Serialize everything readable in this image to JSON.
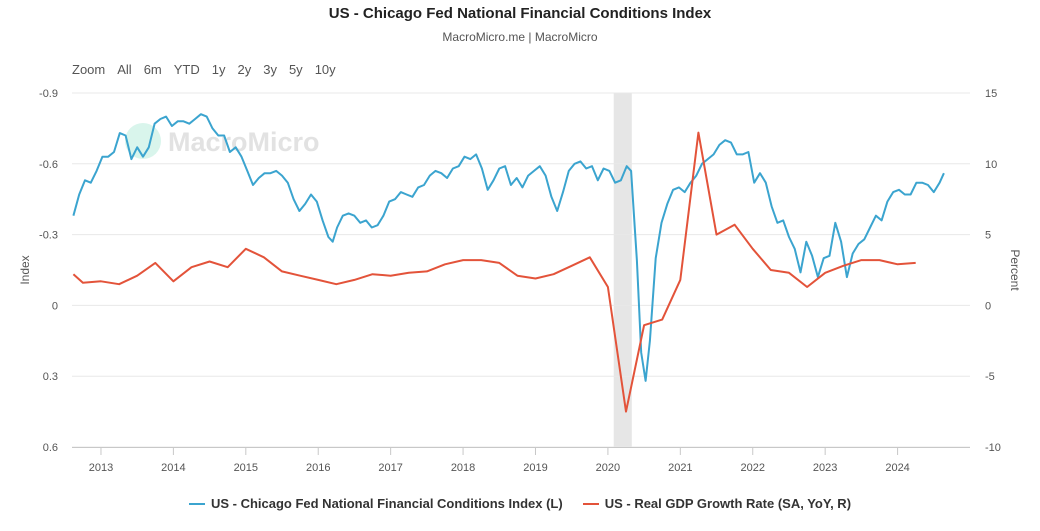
{
  "header": {
    "title": "US - Chicago Fed National Financial Conditions Index",
    "subtitle": "MacroMicro.me | MacroMicro"
  },
  "zoom": {
    "label": "Zoom",
    "buttons": [
      "All",
      "6m",
      "YTD",
      "1y",
      "2y",
      "3y",
      "5y",
      "10y"
    ]
  },
  "watermark": "MacroMicro",
  "colors": {
    "nfci": "#3ba4cf",
    "gdp": "#e3533a",
    "recession": "#e6e6e6",
    "grid": "#e8e8e8"
  },
  "chart_data": {
    "type": "line",
    "title": "US - Chicago Fed National Financial Conditions Index",
    "subtitle": "MacroMicro.me | MacroMicro",
    "x_ticks": [
      "2013",
      "2014",
      "2015",
      "2016",
      "2017",
      "2018",
      "2019",
      "2020",
      "2021",
      "2022",
      "2023",
      "2024"
    ],
    "xlim": [
      2012.6,
      2025.0
    ],
    "y_left": {
      "label": "Index",
      "reversed": true,
      "ylim": [
        -0.9,
        0.6
      ],
      "ticks": [
        "-0.9",
        "-0.6",
        "-0.3",
        "0",
        "0.3",
        "0.6"
      ]
    },
    "y_right": {
      "label": "Percent",
      "ylim": [
        -10,
        15
      ],
      "ticks": [
        "15",
        "10",
        "5",
        "0",
        "-5",
        "-10"
      ]
    },
    "recession_band": [
      2020.08,
      2020.33
    ],
    "grid": true,
    "legend_position": "bottom-center",
    "series": [
      {
        "name": "US - Chicago Fed National Financial Conditions Index (L)",
        "axis": "left",
        "points": [
          [
            2012.62,
            -0.38
          ],
          [
            2012.7,
            -0.47
          ],
          [
            2012.78,
            -0.53
          ],
          [
            2012.86,
            -0.52
          ],
          [
            2012.94,
            -0.57
          ],
          [
            2013.02,
            -0.63
          ],
          [
            2013.1,
            -0.63
          ],
          [
            2013.18,
            -0.65
          ],
          [
            2013.26,
            -0.73
          ],
          [
            2013.34,
            -0.72
          ],
          [
            2013.42,
            -0.62
          ],
          [
            2013.5,
            -0.67
          ],
          [
            2013.58,
            -0.63
          ],
          [
            2013.66,
            -0.67
          ],
          [
            2013.74,
            -0.77
          ],
          [
            2013.82,
            -0.79
          ],
          [
            2013.9,
            -0.8
          ],
          [
            2013.98,
            -0.76
          ],
          [
            2014.06,
            -0.78
          ],
          [
            2014.14,
            -0.78
          ],
          [
            2014.22,
            -0.77
          ],
          [
            2014.3,
            -0.79
          ],
          [
            2014.38,
            -0.81
          ],
          [
            2014.46,
            -0.8
          ],
          [
            2014.54,
            -0.75
          ],
          [
            2014.62,
            -0.72
          ],
          [
            2014.7,
            -0.72
          ],
          [
            2014.78,
            -0.65
          ],
          [
            2014.86,
            -0.67
          ],
          [
            2014.94,
            -0.63
          ],
          [
            2015.02,
            -0.57
          ],
          [
            2015.1,
            -0.51
          ],
          [
            2015.18,
            -0.54
          ],
          [
            2015.26,
            -0.56
          ],
          [
            2015.34,
            -0.56
          ],
          [
            2015.42,
            -0.57
          ],
          [
            2015.5,
            -0.55
          ],
          [
            2015.58,
            -0.52
          ],
          [
            2015.66,
            -0.45
          ],
          [
            2015.74,
            -0.4
          ],
          [
            2015.82,
            -0.43
          ],
          [
            2015.9,
            -0.47
          ],
          [
            2015.98,
            -0.44
          ],
          [
            2016.06,
            -0.36
          ],
          [
            2016.14,
            -0.29
          ],
          [
            2016.2,
            -0.27
          ],
          [
            2016.26,
            -0.33
          ],
          [
            2016.34,
            -0.38
          ],
          [
            2016.42,
            -0.39
          ],
          [
            2016.5,
            -0.38
          ],
          [
            2016.58,
            -0.35
          ],
          [
            2016.66,
            -0.36
          ],
          [
            2016.74,
            -0.33
          ],
          [
            2016.82,
            -0.34
          ],
          [
            2016.9,
            -0.38
          ],
          [
            2016.98,
            -0.44
          ],
          [
            2017.06,
            -0.45
          ],
          [
            2017.14,
            -0.48
          ],
          [
            2017.22,
            -0.47
          ],
          [
            2017.3,
            -0.46
          ],
          [
            2017.38,
            -0.5
          ],
          [
            2017.46,
            -0.51
          ],
          [
            2017.54,
            -0.55
          ],
          [
            2017.62,
            -0.57
          ],
          [
            2017.7,
            -0.56
          ],
          [
            2017.78,
            -0.54
          ],
          [
            2017.86,
            -0.58
          ],
          [
            2017.94,
            -0.59
          ],
          [
            2018.02,
            -0.63
          ],
          [
            2018.1,
            -0.62
          ],
          [
            2018.18,
            -0.64
          ],
          [
            2018.26,
            -0.58
          ],
          [
            2018.34,
            -0.49
          ],
          [
            2018.42,
            -0.53
          ],
          [
            2018.5,
            -0.58
          ],
          [
            2018.58,
            -0.59
          ],
          [
            2018.66,
            -0.51
          ],
          [
            2018.74,
            -0.54
          ],
          [
            2018.82,
            -0.5
          ],
          [
            2018.9,
            -0.55
          ],
          [
            2018.98,
            -0.57
          ],
          [
            2019.06,
            -0.59
          ],
          [
            2019.14,
            -0.55
          ],
          [
            2019.22,
            -0.46
          ],
          [
            2019.3,
            -0.4
          ],
          [
            2019.38,
            -0.48
          ],
          [
            2019.46,
            -0.57
          ],
          [
            2019.54,
            -0.6
          ],
          [
            2019.62,
            -0.61
          ],
          [
            2019.7,
            -0.58
          ],
          [
            2019.78,
            -0.59
          ],
          [
            2019.86,
            -0.53
          ],
          [
            2019.94,
            -0.58
          ],
          [
            2020.02,
            -0.57
          ],
          [
            2020.1,
            -0.52
          ],
          [
            2020.18,
            -0.53
          ],
          [
            2020.26,
            -0.59
          ],
          [
            2020.32,
            -0.57
          ],
          [
            2020.4,
            -0.19
          ],
          [
            2020.46,
            0.2
          ],
          [
            2020.52,
            0.32
          ],
          [
            2020.58,
            0.15
          ],
          [
            2020.66,
            -0.2
          ],
          [
            2020.74,
            -0.35
          ],
          [
            2020.82,
            -0.43
          ],
          [
            2020.9,
            -0.49
          ],
          [
            2020.98,
            -0.5
          ],
          [
            2021.06,
            -0.48
          ],
          [
            2021.14,
            -0.52
          ],
          [
            2021.22,
            -0.55
          ],
          [
            2021.3,
            -0.6
          ],
          [
            2021.38,
            -0.62
          ],
          [
            2021.46,
            -0.64
          ],
          [
            2021.54,
            -0.68
          ],
          [
            2021.62,
            -0.7
          ],
          [
            2021.7,
            -0.69
          ],
          [
            2021.78,
            -0.64
          ],
          [
            2021.86,
            -0.64
          ],
          [
            2021.94,
            -0.65
          ],
          [
            2022.02,
            -0.52
          ],
          [
            2022.1,
            -0.56
          ],
          [
            2022.18,
            -0.52
          ],
          [
            2022.26,
            -0.42
          ],
          [
            2022.34,
            -0.35
          ],
          [
            2022.42,
            -0.36
          ],
          [
            2022.5,
            -0.29
          ],
          [
            2022.58,
            -0.24
          ],
          [
            2022.66,
            -0.14
          ],
          [
            2022.74,
            -0.27
          ],
          [
            2022.82,
            -0.21
          ],
          [
            2022.9,
            -0.12
          ],
          [
            2022.98,
            -0.2
          ],
          [
            2023.06,
            -0.21
          ],
          [
            2023.14,
            -0.35
          ],
          [
            2023.22,
            -0.27
          ],
          [
            2023.3,
            -0.12
          ],
          [
            2023.38,
            -0.22
          ],
          [
            2023.46,
            -0.26
          ],
          [
            2023.54,
            -0.28
          ],
          [
            2023.62,
            -0.33
          ],
          [
            2023.7,
            -0.38
          ],
          [
            2023.78,
            -0.36
          ],
          [
            2023.86,
            -0.44
          ],
          [
            2023.94,
            -0.48
          ],
          [
            2024.02,
            -0.49
          ],
          [
            2024.1,
            -0.47
          ],
          [
            2024.18,
            -0.47
          ],
          [
            2024.26,
            -0.52
          ],
          [
            2024.34,
            -0.52
          ],
          [
            2024.42,
            -0.51
          ],
          [
            2024.5,
            -0.48
          ],
          [
            2024.58,
            -0.52
          ],
          [
            2024.64,
            -0.56
          ]
        ]
      },
      {
        "name": "US - Real GDP Growth Rate (SA, YoY, R)",
        "axis": "right",
        "points": [
          [
            2012.62,
            2.2
          ],
          [
            2012.75,
            1.6
          ],
          [
            2013.0,
            1.7
          ],
          [
            2013.25,
            1.5
          ],
          [
            2013.5,
            2.1
          ],
          [
            2013.75,
            3.0
          ],
          [
            2014.0,
            1.7
          ],
          [
            2014.25,
            2.7
          ],
          [
            2014.5,
            3.1
          ],
          [
            2014.75,
            2.7
          ],
          [
            2015.0,
            4.0
          ],
          [
            2015.25,
            3.4
          ],
          [
            2015.5,
            2.4
          ],
          [
            2015.75,
            2.1
          ],
          [
            2016.0,
            1.8
          ],
          [
            2016.25,
            1.5
          ],
          [
            2016.5,
            1.8
          ],
          [
            2016.75,
            2.2
          ],
          [
            2017.0,
            2.1
          ],
          [
            2017.25,
            2.3
          ],
          [
            2017.5,
            2.4
          ],
          [
            2017.75,
            2.9
          ],
          [
            2018.0,
            3.2
          ],
          [
            2018.25,
            3.2
          ],
          [
            2018.5,
            3.0
          ],
          [
            2018.75,
            2.1
          ],
          [
            2019.0,
            1.9
          ],
          [
            2019.25,
            2.2
          ],
          [
            2019.5,
            2.8
          ],
          [
            2019.75,
            3.4
          ],
          [
            2020.0,
            1.3
          ],
          [
            2020.25,
            -7.5
          ],
          [
            2020.5,
            -1.4
          ],
          [
            2020.75,
            -1.0
          ],
          [
            2021.0,
            1.8
          ],
          [
            2021.25,
            12.2
          ],
          [
            2021.5,
            5.0
          ],
          [
            2021.75,
            5.7
          ],
          [
            2022.0,
            4.0
          ],
          [
            2022.25,
            2.5
          ],
          [
            2022.5,
            2.3
          ],
          [
            2022.75,
            1.3
          ],
          [
            2023.0,
            2.3
          ],
          [
            2023.25,
            2.8
          ],
          [
            2023.5,
            3.2
          ],
          [
            2023.75,
            3.2
          ],
          [
            2024.0,
            2.9
          ],
          [
            2024.25,
            3.0
          ]
        ]
      }
    ]
  }
}
